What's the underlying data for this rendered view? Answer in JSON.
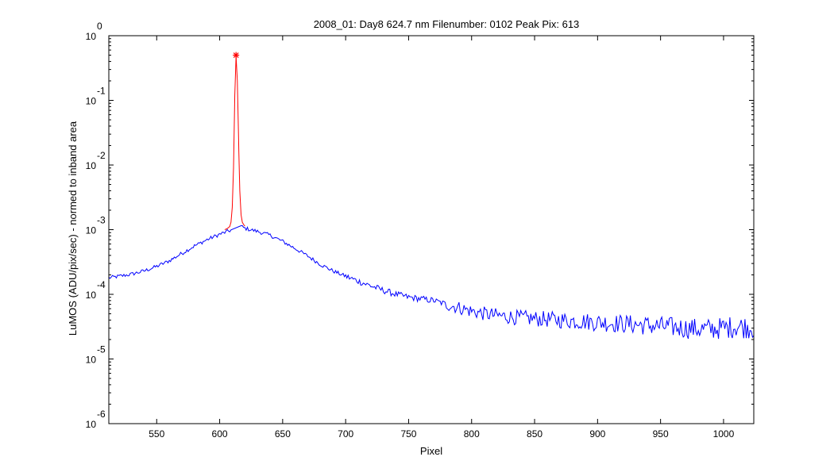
{
  "chart_data": {
    "type": "line",
    "title": "2008_01: Day8  624.7 nm  Filenumber: 0102 Peak Pix: 613",
    "xlabel": "Pixel",
    "ylabel": "LuMOS (ADU/pix/sec) - normed to inband area",
    "xlim": [
      512,
      1024
    ],
    "ylim": [
      1e-06,
      1
    ],
    "yscale": "log",
    "grid": false,
    "x_ticks": [
      550,
      600,
      650,
      700,
      750,
      800,
      850,
      900,
      950,
      1000
    ],
    "x_tick_labels": [
      "550",
      "600",
      "650",
      "700",
      "750",
      "800",
      "850",
      "900",
      "950",
      "1000"
    ],
    "y_ticks": [
      {
        "value": 1,
        "base": "10",
        "exponent": "0"
      },
      {
        "value": 0.1,
        "base": "10",
        "exponent": "-1"
      },
      {
        "value": 0.01,
        "base": "10",
        "exponent": "-2"
      },
      {
        "value": 0.001,
        "base": "10",
        "exponent": "-3"
      },
      {
        "value": 0.0001,
        "base": "10",
        "exponent": "-4"
      },
      {
        "value": 1e-05,
        "base": "10",
        "exponent": "-5"
      },
      {
        "value": 1e-06,
        "base": "10",
        "exponent": "-6"
      }
    ],
    "series": [
      {
        "role": "background",
        "color": "#0000ff",
        "x": [
          512,
          520,
          530,
          540,
          550,
          560,
          570,
          580,
          590,
          600,
          605,
          610,
          616,
          620,
          630,
          640,
          650,
          660,
          670,
          680,
          690,
          700,
          710,
          720,
          730,
          740,
          750,
          760,
          770,
          780,
          790,
          800,
          810,
          820,
          830,
          840,
          850,
          860,
          870,
          880,
          890,
          900,
          910,
          920,
          930,
          940,
          950,
          960,
          970,
          980,
          990,
          1000,
          1010,
          1020,
          1024
        ],
        "y": [
          0.00018,
          0.00019,
          0.000205,
          0.00023,
          0.00027,
          0.00033,
          0.00043,
          0.00056,
          0.0007,
          0.00085,
          0.00092,
          0.001,
          0.00115,
          0.00105,
          0.00094,
          0.00082,
          0.00066,
          0.00051,
          0.00039,
          0.00029,
          0.00023,
          0.00019,
          0.00016,
          0.000135,
          0.000115,
          0.0001,
          9e-05,
          8.5e-05,
          8e-05,
          7e-05,
          6.2e-05,
          5.5e-05,
          5e-05,
          4.7e-05,
          4.5e-05,
          4.3e-05,
          4.2e-05,
          4.1e-05,
          4e-05,
          3.9e-05,
          3.8e-05,
          3.7e-05,
          3.6e-05,
          3.5e-05,
          3.4e-05,
          3.3e-05,
          3.2e-05,
          3.1e-05,
          3e-05,
          2.9e-05,
          2.9e-05,
          3e-05,
          3.2e-05,
          3.1e-05,
          3.1e-05
        ]
      },
      {
        "role": "peak",
        "color": "#ff0000",
        "x": [
          604,
          606,
          608,
          609,
          610,
          611,
          612,
          613,
          614,
          615,
          616,
          617,
          618,
          619,
          620
        ],
        "y": [
          0.001,
          0.00104,
          0.00112,
          0.0013,
          0.0022,
          0.009,
          0.12,
          0.48,
          0.2,
          0.025,
          0.004,
          0.0017,
          0.0013,
          0.0012,
          0.00114
        ]
      }
    ],
    "peak_marker": {
      "x": 613,
      "y": 0.5,
      "color": "#ff0000"
    }
  }
}
